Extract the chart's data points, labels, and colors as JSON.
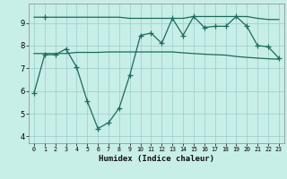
{
  "xlabel": "Humidex (Indice chaleur)",
  "background_color": "#c8eee8",
  "grid_color": "#99cccc",
  "line_color": "#1a6b5a",
  "xlim": [
    -0.5,
    23.5
  ],
  "ylim": [
    3.7,
    9.85
  ],
  "xticks": [
    0,
    1,
    2,
    3,
    4,
    5,
    6,
    7,
    8,
    9,
    10,
    11,
    12,
    13,
    14,
    15,
    16,
    17,
    18,
    19,
    20,
    21,
    22,
    23
  ],
  "yticks": [
    4,
    5,
    6,
    7,
    8,
    9
  ],
  "x": [
    0,
    1,
    2,
    3,
    4,
    5,
    6,
    7,
    8,
    9,
    10,
    11,
    12,
    13,
    14,
    15,
    16,
    17,
    18,
    19,
    20,
    21,
    22,
    23
  ],
  "line1_y": [
    9.25,
    9.25,
    9.25,
    9.25,
    9.25,
    9.25,
    9.25,
    9.25,
    9.25,
    9.2,
    9.2,
    9.2,
    9.2,
    9.2,
    9.2,
    9.28,
    9.28,
    9.28,
    9.28,
    9.28,
    9.28,
    9.2,
    9.15,
    9.15
  ],
  "line2_y": [
    7.65,
    7.65,
    7.65,
    7.65,
    7.7,
    7.7,
    7.7,
    7.72,
    7.72,
    7.72,
    7.72,
    7.72,
    7.72,
    7.72,
    7.68,
    7.65,
    7.62,
    7.6,
    7.58,
    7.52,
    7.48,
    7.45,
    7.42,
    7.4
  ],
  "line3_y": [
    5.9,
    7.6,
    7.6,
    7.85,
    7.05,
    5.55,
    4.35,
    4.6,
    5.25,
    6.7,
    8.45,
    8.55,
    8.1,
    9.2,
    8.45,
    9.28,
    8.8,
    8.85,
    8.85,
    9.28,
    8.85,
    8.0,
    7.95,
    7.45
  ],
  "marker_indices3": [
    0,
    1,
    2,
    3,
    4,
    5,
    6,
    7,
    8,
    9,
    10,
    11,
    12,
    13,
    14,
    15,
    16,
    17,
    18,
    19,
    20,
    21,
    22,
    23
  ],
  "marker_indices1": [
    1
  ],
  "marker_indices2": []
}
